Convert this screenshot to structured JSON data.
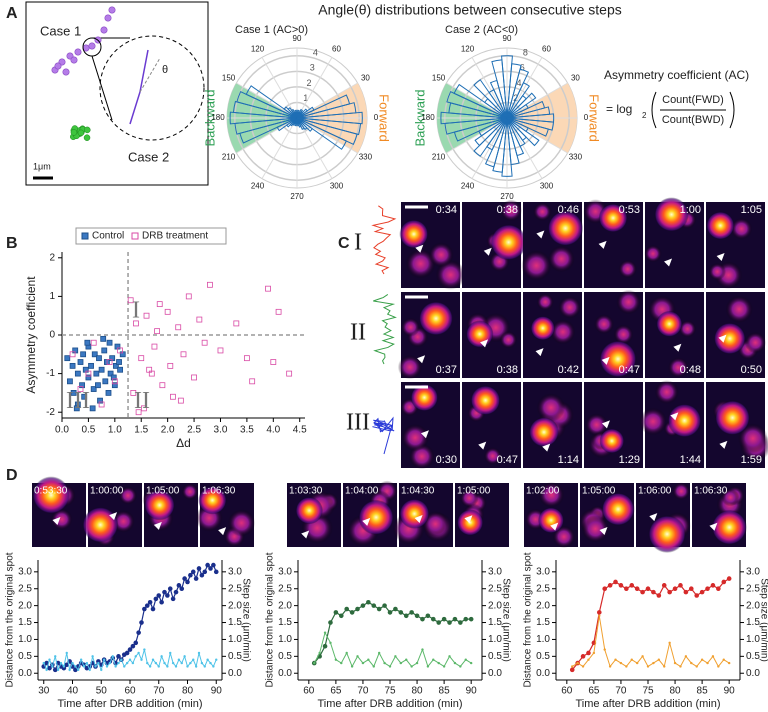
{
  "figure": {
    "title": "Angle(θ) distributions between consecutive steps",
    "panel_labels": [
      "A",
      "B",
      "C",
      "D"
    ],
    "panel_a": {
      "case1_label": "Case 1",
      "case2_label": "Case 2",
      "scale_bar": "1μm",
      "theta": "θ",
      "ac_title": "Asymmetry coefficient (AC)",
      "ac_prefix": "= log",
      "ac_sub": "2",
      "ac_numerator": "Count(FWD)",
      "ac_denominator": "Count(BWD)"
    },
    "panel_c": {
      "rows": [
        {
          "label": "I",
          "times": [
            "0:34",
            "0:38",
            "0:46",
            "0:53",
            "1:00",
            "1:05"
          ]
        },
        {
          "label": "II",
          "times": [
            "0:37",
            "0:38",
            "0:42",
            "0:47",
            "0:48",
            "0:50"
          ]
        },
        {
          "label": "III",
          "times": [
            "0:30",
            "0:47",
            "1:14",
            "1:29",
            "1:44",
            "1:59"
          ]
        }
      ]
    },
    "panel_d": [
      {
        "times": [
          "0:53:30",
          "1:00:00",
          "1:05:00",
          "1:06:30"
        ]
      },
      {
        "times": [
          "1:03:30",
          "1:04:00",
          "1:04:30",
          "1:05:00"
        ]
      },
      {
        "times": [
          "1:02:00",
          "1:05:00",
          "1:06:00",
          "1:06:30"
        ]
      }
    ]
  },
  "chart_data": [
    {
      "type": "polar",
      "title": "Case 1 (AC>0)",
      "color": "#1f6fb5",
      "rlim": [
        0,
        4.5
      ],
      "rticks": [
        1,
        2,
        3,
        4
      ],
      "angle_ticks": [
        0,
        30,
        60,
        90,
        120,
        150,
        180,
        210,
        240,
        270,
        300,
        330
      ],
      "sectors": [
        {
          "label": "Forward",
          "from": -30,
          "to": 30,
          "color": "#fbd8b6",
          "text_color": "#f08a24"
        },
        {
          "label": "Backward",
          "from": 150,
          "to": 210,
          "color": "#9ad9b0",
          "text_color": "#2ea055"
        }
      ],
      "values": [
        4.2,
        3.8,
        3.5,
        1.2,
        0.8,
        0.5,
        0.6,
        0.4,
        0.5,
        0.3,
        0.5,
        0.4,
        0.6,
        0.8,
        1.0,
        3.6,
        4.0,
        4.1,
        4.3,
        4.0,
        3.8,
        1.4,
        0.8,
        0.6,
        0.5,
        0.4,
        0.5,
        0.3,
        0.5,
        0.6,
        0.8,
        0.9,
        1.2,
        3.5,
        4.0,
        4.1
      ]
    },
    {
      "type": "polar",
      "title": "Case 2 (AC<0)",
      "color": "#1f6fb5",
      "rlim": [
        0,
        9
      ],
      "rticks": [
        2,
        4,
        6,
        8
      ],
      "angle_ticks": [
        0,
        30,
        60,
        90,
        120,
        150,
        180,
        210,
        240,
        270,
        300,
        330
      ],
      "sectors": [
        {
          "label": "Forward",
          "from": -30,
          "to": 30,
          "color": "#fbd8b6",
          "text_color": "#f08a24"
        },
        {
          "label": "Backward",
          "from": 150,
          "to": 210,
          "color": "#9ad9b0",
          "text_color": "#2ea055"
        }
      ],
      "values": [
        6,
        5.5,
        5,
        3,
        4.5,
        3.5,
        5,
        6.5,
        7,
        8,
        7.5,
        5,
        4,
        6,
        3.5,
        7.5,
        8,
        7.5,
        8.5,
        8,
        7,
        4,
        5,
        6,
        4.5,
        6.5,
        7,
        7.5,
        6,
        5,
        4,
        3.5,
        5,
        3,
        5.5,
        6
      ]
    },
    {
      "type": "scatter",
      "ylabel": "Asymmetry coefficient",
      "xlabel": "Δd",
      "xlim": [
        0,
        4.6
      ],
      "ylim": [
        -2.15,
        2.15
      ],
      "xticks": [
        {
          "value": 0,
          "label": "0.0"
        },
        0.5,
        {
          "value": 1,
          "label": "1.0"
        },
        1.5,
        {
          "value": 2,
          "label": "2.0"
        },
        2.5,
        {
          "value": 3,
          "label": "3.0"
        },
        3.5,
        {
          "value": 4,
          "label": "4.0"
        },
        4.5
      ],
      "yticks": [
        -2,
        -1,
        0,
        1,
        2
      ],
      "reference_lines": {
        "x": 1.25,
        "y": 0
      },
      "quadrant_labels": [
        "I",
        "II",
        "III"
      ],
      "legend": "top",
      "series": [
        {
          "name": "Control",
          "color": "#3b78c2",
          "marker": "filled",
          "x": [
            0.1,
            0.15,
            0.2,
            0.22,
            0.25,
            0.3,
            0.3,
            0.35,
            0.38,
            0.4,
            0.42,
            0.45,
            0.5,
            0.5,
            0.55,
            0.6,
            0.62,
            0.65,
            0.7,
            0.72,
            0.75,
            0.8,
            0.82,
            0.85,
            0.9,
            0.92,
            0.95,
            1.0,
            1.02,
            1.05,
            1.1,
            1.15,
            0.28,
            0.48,
            0.58,
            0.68,
            0.78,
            0.88,
            0.98,
            1.08
          ],
          "values": [
            -0.6,
            -1.2,
            -0.8,
            -1.5,
            -0.4,
            -1.0,
            -1.8,
            -0.7,
            -1.3,
            -0.5,
            -1.6,
            -0.9,
            -0.3,
            -1.1,
            -0.8,
            -1.4,
            -0.5,
            -1.0,
            -0.6,
            -1.7,
            -0.9,
            -0.4,
            -1.2,
            -0.7,
            -0.2,
            -1.0,
            -0.6,
            -1.3,
            -0.8,
            -0.3,
            -0.9,
            -0.5,
            -1.9,
            -0.2,
            -1.9,
            -1.3,
            -0.1,
            -1.5,
            -1.1,
            -0.7
          ]
        },
        {
          "name": "DRB treatment",
          "color": "#d94aa5",
          "marker": "open",
          "x": [
            0.2,
            0.35,
            0.5,
            0.6,
            0.75,
            0.9,
            1.0,
            1.1,
            1.3,
            1.35,
            1.4,
            1.5,
            1.55,
            1.6,
            1.7,
            1.75,
            1.8,
            1.9,
            2.0,
            2.05,
            2.1,
            2.2,
            2.3,
            2.4,
            2.5,
            2.6,
            2.7,
            2.8,
            3.0,
            3.3,
            3.5,
            3.6,
            3.9,
            4.0,
            4.1,
            4.3,
            1.45,
            1.65,
            1.85,
            2.25
          ],
          "values": [
            -0.5,
            -1.4,
            -1.0,
            -0.2,
            -1.8,
            -0.7,
            -1.2,
            -0.4,
            0.9,
            -1.5,
            0.3,
            -0.6,
            -1.9,
            0.5,
            -1.0,
            -0.3,
            0.1,
            -1.3,
            0.6,
            -0.8,
            -1.6,
            0.2,
            -0.5,
            1.0,
            -1.1,
            0.4,
            -0.2,
            1.3,
            -0.4,
            0.3,
            -0.6,
            -1.2,
            1.2,
            -0.7,
            0.6,
            -1.0,
            -2.0,
            -0.9,
            0.8,
            -1.7
          ]
        }
      ]
    },
    {
      "type": "line",
      "xlabel": "Time after DRB addition (min)",
      "ylabel": "Distance from the original spot",
      "y2label": "Step size (μm/min)",
      "xlim": [
        28,
        92
      ],
      "xticks": [
        30,
        40,
        50,
        60,
        70,
        80,
        90
      ],
      "ylim": [
        -0.2,
        3.35
      ],
      "yticks": [
        {
          "value": 0,
          "label": "0.0"
        },
        0.5,
        {
          "value": 1,
          "label": "1.0"
        },
        1.5,
        {
          "value": 2,
          "label": "2.0"
        },
        2.5,
        {
          "value": 3,
          "label": "3.0"
        }
      ],
      "y2lim": [
        -0.2,
        3.35
      ],
      "y2ticks": [
        {
          "value": 0,
          "label": "0.0"
        },
        0.5,
        {
          "value": 1,
          "label": "1.0"
        },
        1.5,
        {
          "value": 2,
          "label": "2.0"
        },
        2.5,
        {
          "value": 3,
          "label": "3.0"
        }
      ],
      "x": [
        30,
        31,
        32,
        33,
        34,
        35,
        36,
        37,
        38,
        39,
        40,
        41,
        42,
        43,
        44,
        45,
        46,
        47,
        48,
        49,
        50,
        51,
        52,
        53,
        54,
        55,
        56,
        57,
        58,
        59,
        60,
        61,
        62,
        63,
        64,
        65,
        66,
        67,
        68,
        69,
        70,
        71,
        72,
        73,
        74,
        75,
        76,
        77,
        78,
        79,
        80,
        81,
        82,
        83,
        84,
        85,
        86,
        87,
        88,
        89,
        90
      ],
      "series": [
        {
          "color": "#1a2f8c",
          "marker": "circle",
          "values": [
            0.2,
            0.3,
            0.15,
            0.25,
            0.1,
            0.3,
            0.2,
            0.15,
            0.25,
            0.35,
            0.2,
            0.1,
            0.2,
            0.3,
            0.25,
            0.15,
            0.2,
            0.3,
            0.2,
            0.35,
            0.25,
            0.4,
            0.3,
            0.35,
            0.45,
            0.3,
            0.5,
            0.4,
            0.55,
            0.6,
            0.7,
            0.8,
            0.9,
            1.2,
            1.5,
            1.9,
            2.0,
            2.1,
            1.9,
            2.2,
            2.3,
            2.1,
            2.4,
            2.3,
            2.5,
            2.2,
            2.4,
            2.6,
            2.5,
            2.8,
            2.7,
            2.9,
            3.0,
            2.8,
            3.1,
            2.9,
            3.0,
            3.2,
            3.1,
            3.2,
            3.0
          ]
        },
        {
          "color": "#4fc3e8",
          "marker": "dot",
          "axis": "y2",
          "values": [
            0.3,
            0.1,
            0.4,
            0.2,
            0.5,
            0.1,
            0.3,
            0.2,
            0.6,
            0.1,
            0.3,
            0.2,
            0.1,
            0.4,
            0.2,
            0.3,
            0.1,
            0.5,
            0.2,
            0.3,
            0.1,
            0.4,
            0.2,
            0.3,
            0.5,
            0.2,
            0.3,
            0.4,
            0.2,
            0.3,
            0.4,
            0.3,
            0.5,
            0.6,
            0.4,
            0.7,
            0.3,
            0.2,
            0.4,
            0.3,
            0.2,
            0.5,
            0.3,
            0.2,
            0.6,
            0.3,
            0.2,
            0.4,
            0.3,
            0.5,
            0.2,
            0.3,
            0.4,
            0.2,
            0.6,
            0.3,
            0.2,
            0.4,
            0.3,
            0.2,
            0.4
          ]
        }
      ]
    },
    {
      "type": "line",
      "xlabel": "Time after DRB addition (min)",
      "ylabel": "Distance from the original spot",
      "y2label": "Step size (μm/min)",
      "xlim": [
        58,
        92
      ],
      "xticks": [
        60,
        65,
        70,
        75,
        80,
        85,
        90
      ],
      "ylim": [
        -0.2,
        3.35
      ],
      "yticks": [
        {
          "value": 0,
          "label": "0.0"
        },
        0.5,
        {
          "value": 1,
          "label": "1.0"
        },
        1.5,
        {
          "value": 2,
          "label": "2.0"
        },
        2.5,
        {
          "value": 3,
          "label": "3.0"
        }
      ],
      "y2lim": [
        -0.2,
        3.35
      ],
      "y2ticks": [
        {
          "value": 0,
          "label": "0.0"
        },
        0.5,
        {
          "value": 1,
          "label": "1.0"
        },
        1.5,
        {
          "value": 2,
          "label": "2.0"
        },
        2.5,
        {
          "value": 3,
          "label": "3.0"
        }
      ],
      "x": [
        61,
        62,
        63,
        64,
        65,
        66,
        67,
        68,
        69,
        70,
        71,
        72,
        73,
        74,
        75,
        76,
        77,
        78,
        79,
        80,
        81,
        82,
        83,
        84,
        85,
        86,
        87,
        88,
        89,
        90
      ],
      "series": [
        {
          "color": "#2e6b3e",
          "marker": "circle",
          "values": [
            0.3,
            0.5,
            0.8,
            1.5,
            1.8,
            1.7,
            1.9,
            1.8,
            1.9,
            2.0,
            2.1,
            2.0,
            1.9,
            2.0,
            1.8,
            1.9,
            1.8,
            1.7,
            1.8,
            1.7,
            1.6,
            1.7,
            1.6,
            1.5,
            1.6,
            1.5,
            1.6,
            1.5,
            1.6,
            1.6
          ]
        },
        {
          "color": "#5cb86a",
          "marker": "dot",
          "axis": "y2",
          "values": [
            0.3,
            0.6,
            1.2,
            0.9,
            0.4,
            0.3,
            0.6,
            0.2,
            0.5,
            0.3,
            0.4,
            0.2,
            0.6,
            0.3,
            0.2,
            0.5,
            0.3,
            0.4,
            0.2,
            0.3,
            0.7,
            0.2,
            0.4,
            0.3,
            0.2,
            0.5,
            0.3,
            0.2,
            0.4,
            0.3
          ]
        }
      ]
    },
    {
      "type": "line",
      "xlabel": "Time after DRB addition (min)",
      "ylabel": "Distance from the original spot",
      "y2label": "Step size (μm/min)",
      "xlim": [
        58,
        92
      ],
      "xticks": [
        60,
        65,
        70,
        75,
        80,
        85,
        90
      ],
      "ylim": [
        -0.2,
        3.35
      ],
      "yticks": [
        {
          "value": 0,
          "label": "0.0"
        },
        0.5,
        {
          "value": 1,
          "label": "1.0"
        },
        1.5,
        {
          "value": 2,
          "label": "2.0"
        },
        2.5,
        {
          "value": 3,
          "label": "3.0"
        }
      ],
      "y2lim": [
        -0.2,
        3.35
      ],
      "y2ticks": [
        {
          "value": 0,
          "label": "0.0"
        },
        0.5,
        {
          "value": 1,
          "label": "1.0"
        },
        1.5,
        {
          "value": 2,
          "label": "2.0"
        },
        2.5,
        {
          "value": 3,
          "label": "3.0"
        }
      ],
      "x": [
        61,
        62,
        63,
        64,
        65,
        66,
        67,
        68,
        69,
        70,
        71,
        72,
        73,
        74,
        75,
        76,
        77,
        78,
        79,
        80,
        81,
        82,
        83,
        84,
        85,
        86,
        87,
        88,
        89,
        90
      ],
      "series": [
        {
          "color": "#d62a2a",
          "marker": "circle",
          "values": [
            0.1,
            0.3,
            0.5,
            0.6,
            0.9,
            1.8,
            2.5,
            2.6,
            2.7,
            2.6,
            2.5,
            2.6,
            2.5,
            2.4,
            2.5,
            2.4,
            2.3,
            2.6,
            2.4,
            2.5,
            2.6,
            2.4,
            2.5,
            2.3,
            2.4,
            2.5,
            2.6,
            2.5,
            2.7,
            2.8
          ]
        },
        {
          "color": "#f0a030",
          "marker": "dot",
          "axis": "y2",
          "values": [
            0.2,
            0.3,
            0.2,
            0.4,
            0.6,
            1.7,
            0.7,
            0.2,
            0.4,
            0.3,
            0.2,
            0.4,
            0.3,
            0.5,
            0.2,
            0.3,
            0.4,
            0.2,
            0.9,
            0.3,
            0.2,
            0.5,
            0.3,
            0.2,
            0.4,
            0.3,
            0.5,
            0.2,
            0.4,
            0.3
          ]
        }
      ]
    }
  ]
}
